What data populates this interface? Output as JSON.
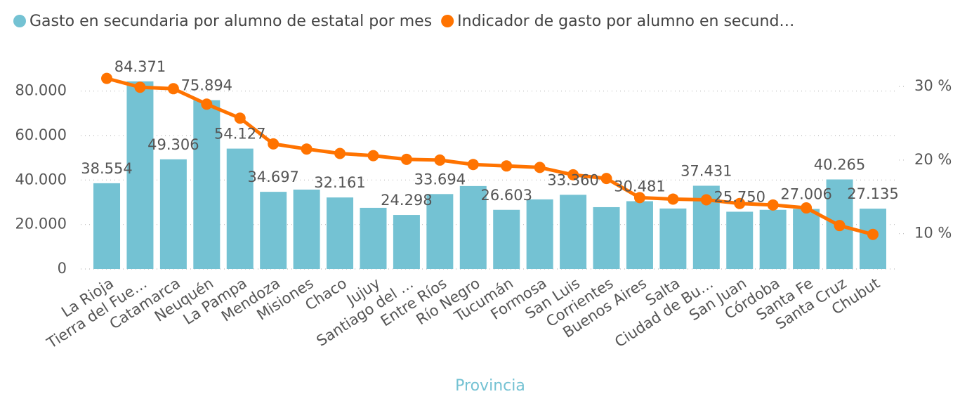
{
  "chart_data": {
    "type": "bar_line",
    "x_label": "Provincia",
    "categories": [
      "La Rioja",
      "Tierra del Fue…",
      "Catamarca",
      "Neuquén",
      "La Pampa",
      "Mendoza",
      "Misiones",
      "Chaco",
      "Jujuy",
      "Santiago del …",
      "Entre Ríos",
      "Río Negro",
      "Tucumán",
      "Formosa",
      "San Luis",
      "Corrientes",
      "Buenos Aires",
      "Salta",
      "Ciudad de Bu…",
      "San Juan",
      "Córdoba",
      "Santa Fe",
      "Santa Cruz",
      "Chubut"
    ],
    "series": [
      {
        "name": "Gasto en secundaria por alumno de estatal por mes",
        "color": "#74c2d3",
        "type": "bar",
        "values": [
          38554,
          84371,
          49306,
          75894,
          54127,
          34697,
          35700,
          32161,
          27500,
          24298,
          33694,
          37300,
          26603,
          31300,
          33360,
          27800,
          30481,
          27200,
          37431,
          25750,
          26600,
          27006,
          40265,
          27135
        ],
        "value_labels": [
          "38.554",
          "84.371",
          "49.306",
          "75.894",
          "54.127",
          "34.697",
          null,
          "32.161",
          null,
          "24.298",
          "33.694",
          null,
          "26.603",
          null,
          "33.360",
          null,
          "30.481",
          null,
          "37.431",
          "25.750",
          null,
          "27.006",
          "40.265",
          "27.135"
        ]
      },
      {
        "name": "Indicador de gasto por alumno en secund…",
        "color": "#ff7300",
        "type": "line",
        "axis": "y2",
        "values": [
          31.1,
          29.9,
          29.7,
          27.6,
          25.7,
          22.2,
          21.5,
          20.9,
          20.6,
          20.1,
          20.0,
          19.4,
          19.2,
          19.0,
          18.0,
          17.5,
          14.9,
          14.7,
          14.6,
          14.1,
          13.9,
          13.5,
          11.1,
          9.9
        ]
      }
    ],
    "ylim": [
      0,
      90000
    ],
    "yticks": [
      0,
      {
        "value": 20000,
        "label": "20.000"
      },
      {
        "value": 40000,
        "label": "40.000"
      },
      {
        "value": 60000,
        "label": "60.000"
      },
      {
        "value": 80000,
        "label": "80.000"
      }
    ],
    "y2lim": [
      5.2,
      32.4
    ],
    "y2ticks": [
      {
        "value": 10,
        "label": "10 %"
      },
      {
        "value": 20,
        "label": "20 %"
      },
      {
        "value": 30,
        "label": "30 %"
      }
    ],
    "grid": true
  }
}
